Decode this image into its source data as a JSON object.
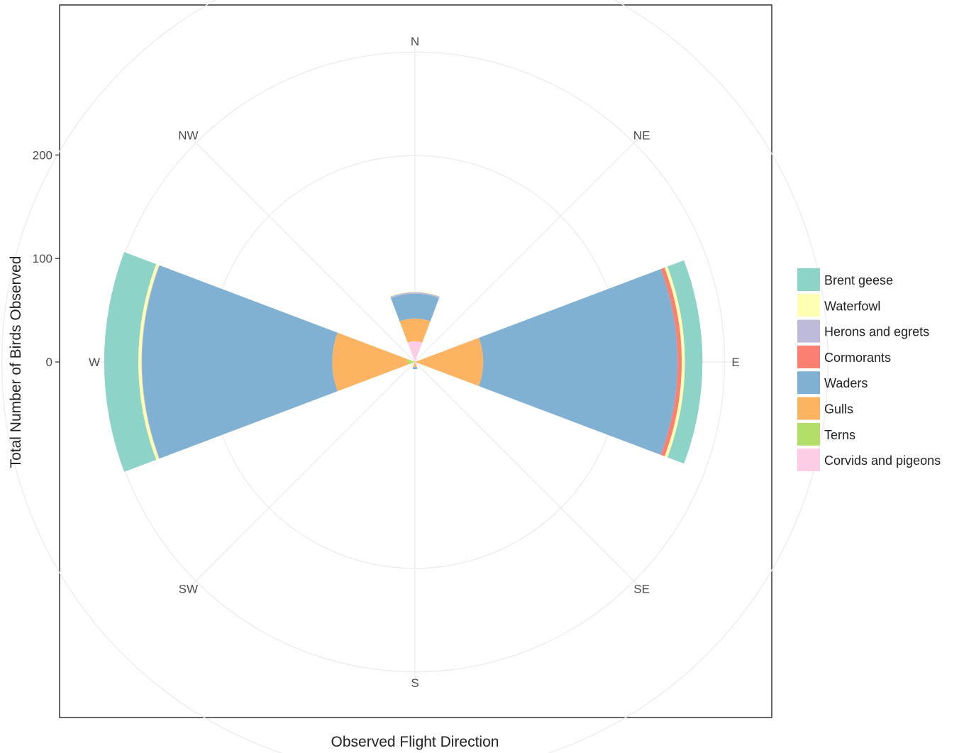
{
  "chart_data": {
    "type": "polar-stacked-bar",
    "xlabel": "Observed Flight Direction",
    "ylabel": "Total Number of Birds Observed",
    "directions": [
      "N",
      "NE",
      "E",
      "SE",
      "S",
      "SW",
      "W",
      "NW"
    ],
    "y_ticks": [
      0,
      100,
      200
    ],
    "r_max": 310,
    "grid": true,
    "legend_position": "right",
    "series": [
      {
        "name": "Brent geese",
        "color": "#8dd3c7",
        "values": {
          "N": 0,
          "E": 17,
          "S": 0,
          "W": 33
        }
      },
      {
        "name": "Waterfowl",
        "color": "#ffffb3",
        "values": {
          "N": 0.5,
          "E": 3,
          "S": 0,
          "W": 3
        }
      },
      {
        "name": "Herons and egrets",
        "color": "#bebada",
        "values": {
          "N": 1.5,
          "E": 0,
          "S": 0,
          "W": 0.5
        }
      },
      {
        "name": "Cormorants",
        "color": "#fb8072",
        "values": {
          "N": 0,
          "E": 4,
          "S": 0,
          "W": 0
        }
      },
      {
        "name": "Waders",
        "color": "#80b1d3",
        "values": {
          "N": 24,
          "E": 188,
          "S": 2,
          "W": 184
        }
      },
      {
        "name": "Gulls",
        "color": "#fdb462",
        "values": {
          "N": 22,
          "E": 66,
          "S": 5,
          "W": 73
        }
      },
      {
        "name": "Terns",
        "color": "#b3de69",
        "values": {
          "N": 0,
          "E": 0,
          "S": 0,
          "W": 7
        }
      },
      {
        "name": "Corvids and pigeons",
        "color": "#fccde5",
        "values": {
          "N": 20,
          "E": 0,
          "S": 0,
          "W": 0
        }
      }
    ]
  }
}
